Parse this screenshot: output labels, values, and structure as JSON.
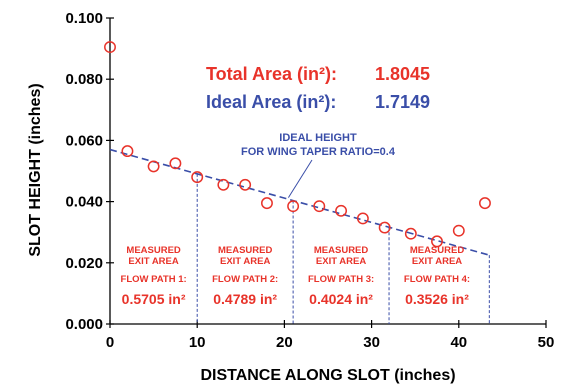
{
  "colors": {
    "measured": "#e8332a",
    "ideal": "#3a4ea8",
    "axis": "#000000"
  },
  "chart_data": {
    "type": "scatter",
    "xlabel": "DISTANCE ALONG SLOT (inches)",
    "ylabel": "SLOT HEIGHT (inches)",
    "xlim": [
      0,
      50
    ],
    "ylim": [
      0,
      0.1
    ],
    "x_ticks": [
      "0",
      "10",
      "20",
      "30",
      "40",
      "50"
    ],
    "y_ticks": [
      "0.000",
      "0.020",
      "0.040",
      "0.060",
      "0.080",
      "0.100"
    ],
    "grid": false,
    "series": [
      {
        "marker": "open-circle",
        "x": [
          0,
          2,
          5,
          7.5,
          10,
          13,
          15.5,
          18,
          21,
          24,
          26.5,
          29,
          31.5,
          34.5,
          37.5,
          40,
          43
        ],
        "y": [
          0.0905,
          0.0565,
          0.0515,
          0.0525,
          0.048,
          0.0455,
          0.0455,
          0.0395,
          0.0385,
          0.0385,
          0.037,
          0.0345,
          0.0315,
          0.0295,
          0.027,
          0.0305,
          0.0395
        ]
      },
      {
        "style": "dashed-line",
        "x": [
          0,
          43.5
        ],
        "y": [
          0.057,
          0.0225
        ]
      }
    ],
    "totals": {
      "total_label": "Total Area (in²):",
      "total_value": "1.8045",
      "ideal_label": "Ideal Area (in²):",
      "ideal_value": "1.7149"
    },
    "ideal_note": [
      "IDEAL HEIGHT",
      "FOR WING TAPER RATIO=0.4"
    ],
    "ideal_note_target": {
      "x": 20,
      "y": 0.04
    },
    "dividers_x": [
      10,
      21,
      32,
      43.5
    ],
    "flow_paths": [
      {
        "line1": "MEASURED",
        "line2": "EXIT AREA",
        "line3": "FLOW PATH 1:",
        "value": "0.5705 in²",
        "x_center": 5
      },
      {
        "line1": "MEASURED",
        "line2": "EXIT AREA",
        "line3": "FLOW PATH 2:",
        "value": "0.4789 in²",
        "x_center": 15.5
      },
      {
        "line1": "MEASURED",
        "line2": "EXIT AREA",
        "line3": "FLOW PATH 3:",
        "value": "0.4024 in²",
        "x_center": 26.5
      },
      {
        "line1": "MEASURED",
        "line2": "EXIT AREA",
        "line3": "FLOW PATH 4:",
        "value": "0.3526 in²",
        "x_center": 37.5
      }
    ]
  }
}
